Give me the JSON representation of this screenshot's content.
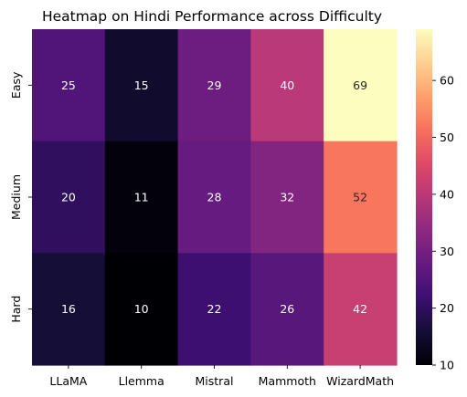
{
  "chart_data": {
    "type": "heatmap",
    "title": "Heatmap on Hindi Performance across Difficulty",
    "xlabel": "",
    "ylabel": "",
    "x_categories": [
      "LLaMA",
      "Llemma",
      "Mistral",
      "Mammoth",
      "WizardMath"
    ],
    "y_categories": [
      "Easy",
      "Medium",
      "Hard"
    ],
    "values": [
      [
        25,
        15,
        29,
        40,
        69
      ],
      [
        20,
        11,
        28,
        32,
        52
      ],
      [
        16,
        10,
        22,
        26,
        42
      ]
    ],
    "annotations": true,
    "colormap": "magma",
    "colorbar": {
      "range": [
        10,
        69
      ],
      "ticks": [
        10,
        20,
        30,
        40,
        50,
        60
      ]
    },
    "grid": false
  }
}
